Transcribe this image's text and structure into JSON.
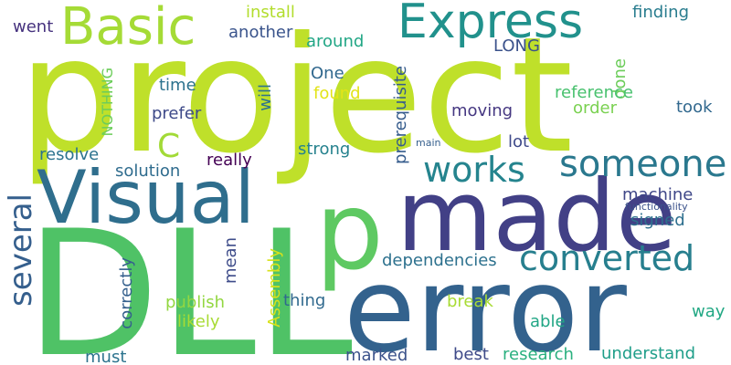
{
  "words": [
    {
      "text": "project",
      "color": "#bfe02a"
    },
    {
      "text": "DLL",
      "color": "#4fc266"
    },
    {
      "text": "error",
      "color": "#33628d"
    },
    {
      "text": "made",
      "color": "#424086"
    },
    {
      "text": "Visual",
      "color": "#2f6e8d"
    },
    {
      "text": "p",
      "color": "#5ec962"
    },
    {
      "text": "Express",
      "color": "#21918c"
    },
    {
      "text": "Basic",
      "color": "#a5db36"
    },
    {
      "text": "someone",
      "color": "#2a788e"
    },
    {
      "text": "converted",
      "color": "#277f8e"
    },
    {
      "text": "works",
      "color": "#25848e"
    },
    {
      "text": "several",
      "color": "#355f8d"
    },
    {
      "text": "C",
      "color": "#a2da37"
    },
    {
      "text": "install",
      "color": "#b2dd2d"
    },
    {
      "text": "went",
      "color": "#46327e"
    },
    {
      "text": "another",
      "color": "#3a548c"
    },
    {
      "text": "around",
      "color": "#21a685"
    },
    {
      "text": "finding",
      "color": "#287c8e"
    },
    {
      "text": "LONG",
      "color": "#3b528b"
    },
    {
      "text": "One",
      "color": "#31688e"
    },
    {
      "text": "found",
      "color": "#e2e418"
    },
    {
      "text": "time",
      "color": "#2c728e"
    },
    {
      "text": "will",
      "color": "#2c728e"
    },
    {
      "text": "done",
      "color": "#6ccd5a"
    },
    {
      "text": "reference",
      "color": "#48c16e"
    },
    {
      "text": "order",
      "color": "#7ad151"
    },
    {
      "text": "took",
      "color": "#31688e"
    },
    {
      "text": "prefer",
      "color": "#3e4a89"
    },
    {
      "text": "NOTHING",
      "color": "#6ccd5a"
    },
    {
      "text": "moving",
      "color": "#453781"
    },
    {
      "text": "prerequisite",
      "color": "#365c8d"
    },
    {
      "text": "main",
      "color": "#355f8d"
    },
    {
      "text": "lot",
      "color": "#3e4989"
    },
    {
      "text": "strong",
      "color": "#26828e"
    },
    {
      "text": "resolve",
      "color": "#2c738e"
    },
    {
      "text": "really",
      "color": "#440154"
    },
    {
      "text": "solution",
      "color": "#2f6c8e"
    },
    {
      "text": "functionality",
      "color": "#3b528b"
    },
    {
      "text": "machine",
      "color": "#3f4788"
    },
    {
      "text": "signed",
      "color": "#2e6f8e"
    },
    {
      "text": "mean",
      "color": "#3e4c8a"
    },
    {
      "text": "correctly",
      "color": "#35608d"
    },
    {
      "text": "Assembly",
      "color": "#d8e219"
    },
    {
      "text": "dependencies",
      "color": "#2d718e"
    },
    {
      "text": "publish",
      "color": "#93d741"
    },
    {
      "text": "thing",
      "color": "#30698e"
    },
    {
      "text": "break",
      "color": "#a8db34"
    },
    {
      "text": "likely",
      "color": "#a8db34"
    },
    {
      "text": "able",
      "color": "#21a685"
    },
    {
      "text": "way",
      "color": "#22a884"
    },
    {
      "text": "must",
      "color": "#2c738e"
    },
    {
      "text": "marked",
      "color": "#3b528b"
    },
    {
      "text": "best",
      "color": "#3e4a89"
    },
    {
      "text": "research",
      "color": "#2ab07f"
    },
    {
      "text": "understand",
      "color": "#1f9e89"
    }
  ]
}
